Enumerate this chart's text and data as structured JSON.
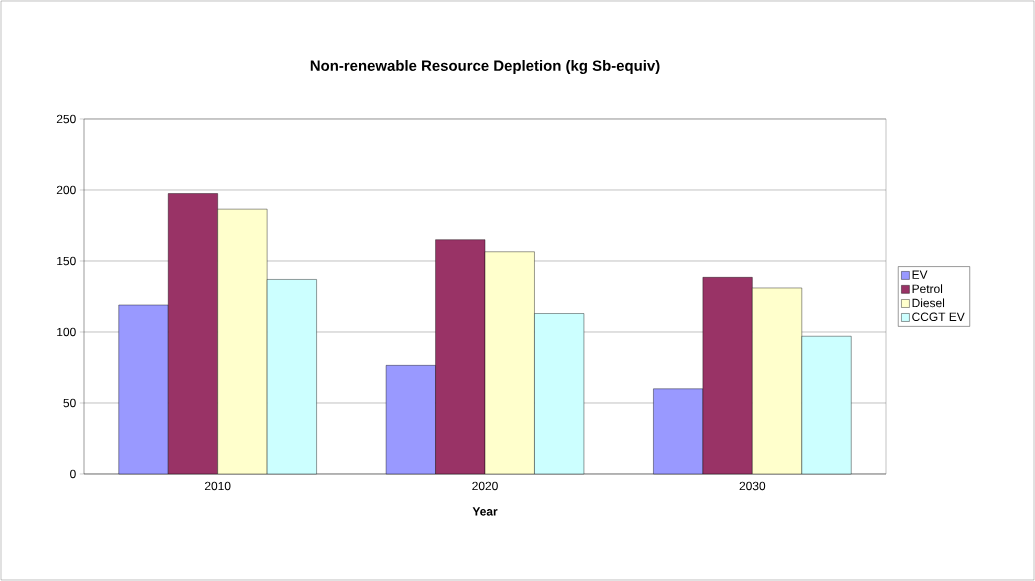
{
  "chart_data": {
    "type": "bar",
    "title": "Non-renewable Resource Depletion (kg Sb-equiv)",
    "xlabel": "Year",
    "categories": [
      "2010",
      "2020",
      "2030"
    ],
    "series": [
      {
        "name": "EV",
        "color": "#9999ff",
        "values": [
          119,
          76.5,
          60
        ]
      },
      {
        "name": "Petrol",
        "color": "#993366",
        "values": [
          197.5,
          165,
          138.5
        ]
      },
      {
        "name": "Diesel",
        "color": "#ffffcc",
        "values": [
          186.5,
          156.5,
          131
        ]
      },
      {
        "name": "CCGT EV",
        "color": "#ccffff",
        "values": [
          137,
          113,
          97
        ]
      }
    ],
    "ylim": [
      0,
      250
    ],
    "yticks": [
      0,
      50,
      100,
      150,
      200,
      250
    ],
    "grid": "y",
    "legend": "right"
  }
}
